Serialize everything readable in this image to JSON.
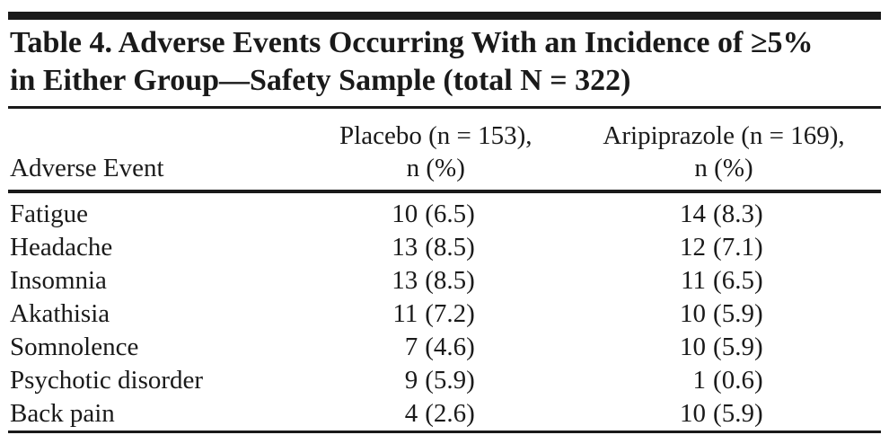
{
  "table": {
    "title_line1": "Table 4. Adverse Events Occurring With an Incidence of ≥5%",
    "title_line2": "in Either Group—Safety Sample (total N = 322)",
    "columns": {
      "event": "Adverse Event",
      "placebo_line1": "Placebo (n = 153),",
      "placebo_line2": "n (%)",
      "aripiprazole_line1": "Aripiprazole (n = 169),",
      "aripiprazole_line2": "n (%)"
    },
    "rows": [
      {
        "event": "Fatigue",
        "placebo_n": "10",
        "placebo_pct": "(6.5)",
        "aripiprazole_n": "14",
        "aripiprazole_pct": "(8.3)"
      },
      {
        "event": "Headache",
        "placebo_n": "13",
        "placebo_pct": "(8.5)",
        "aripiprazole_n": "12",
        "aripiprazole_pct": "(7.1)"
      },
      {
        "event": "Insomnia",
        "placebo_n": "13",
        "placebo_pct": "(8.5)",
        "aripiprazole_n": "11",
        "aripiprazole_pct": "(6.5)"
      },
      {
        "event": "Akathisia",
        "placebo_n": "11",
        "placebo_pct": "(7.2)",
        "aripiprazole_n": "10",
        "aripiprazole_pct": "(5.9)"
      },
      {
        "event": "Somnolence",
        "placebo_n": "7",
        "placebo_pct": "(4.6)",
        "aripiprazole_n": "10",
        "aripiprazole_pct": "(5.9)"
      },
      {
        "event": "Psychotic disorder",
        "placebo_n": "9",
        "placebo_pct": "(5.9)",
        "aripiprazole_n": "1",
        "aripiprazole_pct": "(0.6)"
      },
      {
        "event": "Back pain",
        "placebo_n": "4",
        "placebo_pct": "(2.6)",
        "aripiprazole_n": "10",
        "aripiprazole_pct": "(5.9)"
      }
    ]
  }
}
